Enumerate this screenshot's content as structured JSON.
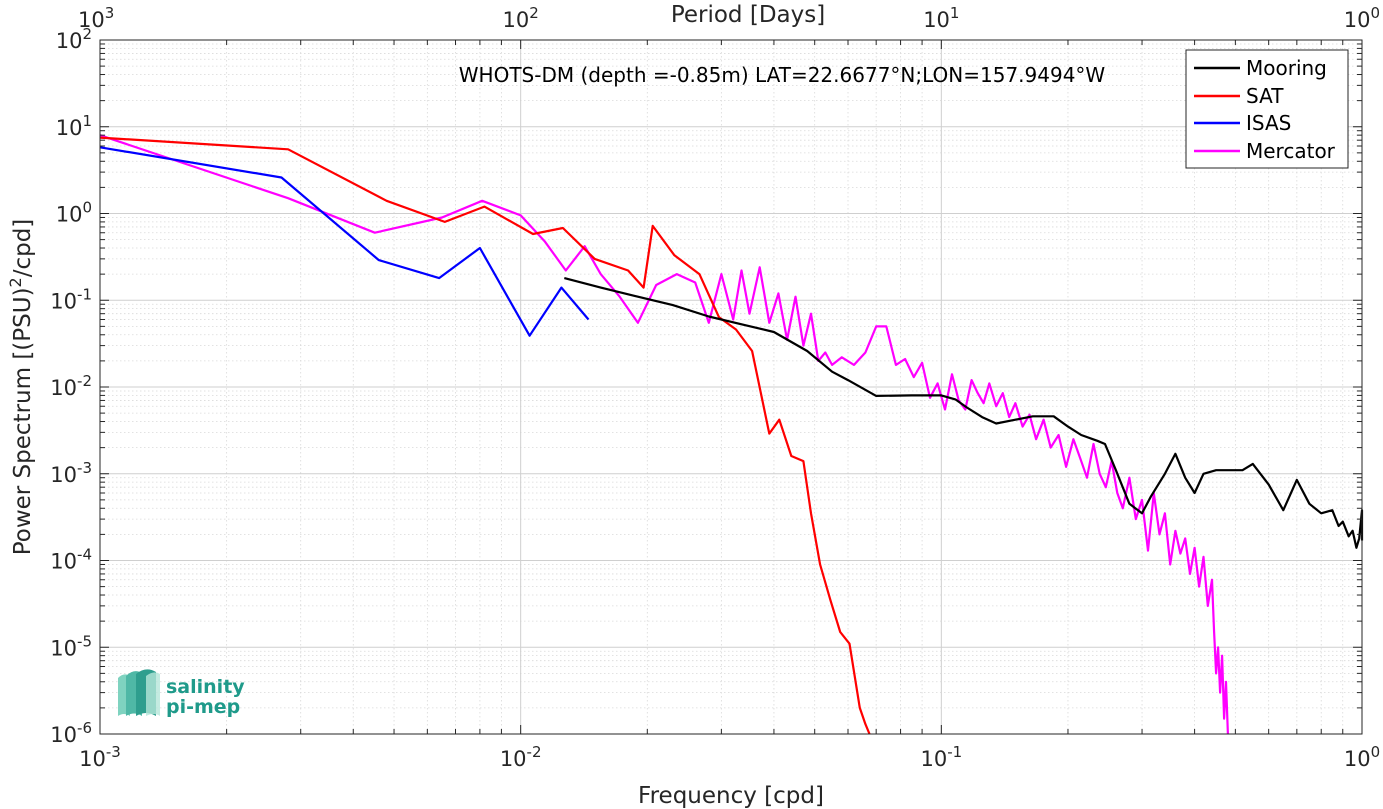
{
  "chart_data": {
    "type": "line",
    "title": "",
    "annotation": "WHOTS-DM (depth =-0.85m) LAT=22.6677°N;LON=157.9494°W",
    "xlabel": "Frequency [cpd]",
    "ylabel": "Power Spectrum [(PSU)",
    "ylabel_sup": "2",
    "ylabel_tail": "/cpd]",
    "top_xlabel": "Period [Days]",
    "xscale": "log",
    "yscale": "log",
    "xlim": [
      0.001,
      1
    ],
    "ylim": [
      1e-06,
      100
    ],
    "grid": true,
    "legend_position": "top-right",
    "x_ticks": [
      {
        "value": 0.001,
        "base": "10",
        "exp": "-3"
      },
      {
        "value": 0.01,
        "base": "10",
        "exp": "-2"
      },
      {
        "value": 0.1,
        "base": "10",
        "exp": "-1"
      },
      {
        "value": 1,
        "base": "10",
        "exp": "0"
      }
    ],
    "y_ticks": [
      {
        "value": 1e-06,
        "base": "10",
        "exp": "-6"
      },
      {
        "value": 1e-05,
        "base": "10",
        "exp": "-5"
      },
      {
        "value": 0.0001,
        "base": "10",
        "exp": "-4"
      },
      {
        "value": 0.001,
        "base": "10",
        "exp": "-3"
      },
      {
        "value": 0.01,
        "base": "10",
        "exp": "-2"
      },
      {
        "value": 0.1,
        "base": "10",
        "exp": "-1"
      },
      {
        "value": 1,
        "base": "10",
        "exp": "0"
      },
      {
        "value": 10,
        "base": "10",
        "exp": "1"
      },
      {
        "value": 100,
        "base": "10",
        "exp": "2"
      }
    ],
    "top_ticks": [
      {
        "value": 0.001,
        "base": "10",
        "exp": "3"
      },
      {
        "value": 0.01,
        "base": "10",
        "exp": "2"
      },
      {
        "value": 0.1,
        "base": "10",
        "exp": "1"
      },
      {
        "value": 1,
        "base": "10",
        "exp": "0"
      }
    ],
    "series": [
      {
        "name": "Mooring",
        "color": "#000000",
        "points": [
          [
            0.0127,
            0.18
          ],
          [
            0.0155,
            0.14
          ],
          [
            0.019,
            0.11
          ],
          [
            0.023,
            0.088
          ],
          [
            0.028,
            0.065
          ],
          [
            0.034,
            0.052
          ],
          [
            0.04,
            0.043
          ],
          [
            0.048,
            0.026
          ],
          [
            0.055,
            0.015
          ],
          [
            0.06,
            0.012
          ],
          [
            0.07,
            0.0079
          ],
          [
            0.085,
            0.008
          ],
          [
            0.1,
            0.008
          ],
          [
            0.108,
            0.0072
          ],
          [
            0.115,
            0.0058
          ],
          [
            0.125,
            0.0045
          ],
          [
            0.135,
            0.0038
          ],
          [
            0.15,
            0.0042
          ],
          [
            0.165,
            0.0046
          ],
          [
            0.185,
            0.0046
          ],
          [
            0.2,
            0.0035
          ],
          [
            0.215,
            0.0028
          ],
          [
            0.235,
            0.0024
          ],
          [
            0.245,
            0.0022
          ],
          [
            0.26,
            0.0011
          ],
          [
            0.28,
            0.00045
          ],
          [
            0.3,
            0.00035
          ],
          [
            0.315,
            0.00055
          ],
          [
            0.34,
            0.001
          ],
          [
            0.36,
            0.0017
          ],
          [
            0.38,
            0.0009
          ],
          [
            0.4,
            0.0006
          ],
          [
            0.42,
            0.001
          ],
          [
            0.45,
            0.0011
          ],
          [
            0.48,
            0.0011
          ],
          [
            0.52,
            0.0011
          ],
          [
            0.55,
            0.0013
          ],
          [
            0.6,
            0.00075
          ],
          [
            0.65,
            0.00038
          ],
          [
            0.7,
            0.00085
          ],
          [
            0.75,
            0.00045
          ],
          [
            0.8,
            0.00035
          ],
          [
            0.85,
            0.00038
          ],
          [
            0.88,
            0.00025
          ],
          [
            0.9,
            0.00028
          ],
          [
            0.93,
            0.00019
          ],
          [
            0.95,
            0.00022
          ],
          [
            0.97,
            0.00014
          ],
          [
            0.985,
            0.00018
          ],
          [
            1.0,
            0.00038
          ],
          [
            1.0,
            0.00017
          ]
        ]
      },
      {
        "name": "SAT",
        "color": "#ff0000",
        "points": [
          [
            0.001,
            7.5
          ],
          [
            0.0028,
            5.5
          ],
          [
            0.0048,
            1.4
          ],
          [
            0.0066,
            0.8
          ],
          [
            0.0082,
            1.2
          ],
          [
            0.0107,
            0.58
          ],
          [
            0.0126,
            0.68
          ],
          [
            0.015,
            0.3
          ],
          [
            0.018,
            0.22
          ],
          [
            0.0196,
            0.14
          ],
          [
            0.0206,
            0.72
          ],
          [
            0.0232,
            0.33
          ],
          [
            0.0266,
            0.2
          ],
          [
            0.0296,
            0.064
          ],
          [
            0.0325,
            0.046
          ],
          [
            0.0355,
            0.026
          ],
          [
            0.039,
            0.0029
          ],
          [
            0.0412,
            0.0042
          ],
          [
            0.044,
            0.0016
          ],
          [
            0.047,
            0.0014
          ],
          [
            0.049,
            0.00035
          ],
          [
            0.0515,
            9e-05
          ],
          [
            0.0545,
            3.5e-05
          ],
          [
            0.0575,
            1.5e-05
          ],
          [
            0.0605,
            1.1e-05
          ],
          [
            0.064,
            2e-06
          ],
          [
            0.066,
            1.3e-06
          ],
          [
            0.0675,
            1e-06
          ]
        ]
      },
      {
        "name": "ISAS",
        "color": "#0000ff",
        "points": [
          [
            0.001,
            5.8
          ],
          [
            0.0027,
            2.6
          ],
          [
            0.0046,
            0.29
          ],
          [
            0.0064,
            0.18
          ],
          [
            0.008,
            0.4
          ],
          [
            0.0105,
            0.039
          ],
          [
            0.0125,
            0.14
          ],
          [
            0.0145,
            0.06
          ]
        ]
      },
      {
        "name": "Mercator",
        "color": "#ff00ff",
        "points": [
          [
            0.001,
            8.0
          ],
          [
            0.0028,
            1.5
          ],
          [
            0.0045,
            0.6
          ],
          [
            0.0065,
            0.9
          ],
          [
            0.0081,
            1.4
          ],
          [
            0.01,
            0.95
          ],
          [
            0.0114,
            0.48
          ],
          [
            0.0128,
            0.22
          ],
          [
            0.0142,
            0.42
          ],
          [
            0.0155,
            0.2
          ],
          [
            0.0172,
            0.11
          ],
          [
            0.019,
            0.055
          ],
          [
            0.021,
            0.15
          ],
          [
            0.0235,
            0.2
          ],
          [
            0.026,
            0.16
          ],
          [
            0.028,
            0.055
          ],
          [
            0.03,
            0.2
          ],
          [
            0.032,
            0.06
          ],
          [
            0.0335,
            0.22
          ],
          [
            0.035,
            0.07
          ],
          [
            0.037,
            0.24
          ],
          [
            0.039,
            0.055
          ],
          [
            0.041,
            0.12
          ],
          [
            0.043,
            0.035
          ],
          [
            0.045,
            0.11
          ],
          [
            0.047,
            0.03
          ],
          [
            0.049,
            0.07
          ],
          [
            0.051,
            0.02
          ],
          [
            0.053,
            0.025
          ],
          [
            0.055,
            0.018
          ],
          [
            0.058,
            0.022
          ],
          [
            0.062,
            0.018
          ],
          [
            0.066,
            0.025
          ],
          [
            0.07,
            0.05
          ],
          [
            0.074,
            0.05
          ],
          [
            0.078,
            0.018
          ],
          [
            0.082,
            0.021
          ],
          [
            0.086,
            0.013
          ],
          [
            0.09,
            0.019
          ],
          [
            0.094,
            0.0075
          ],
          [
            0.098,
            0.011
          ],
          [
            0.102,
            0.0055
          ],
          [
            0.106,
            0.014
          ],
          [
            0.11,
            0.007
          ],
          [
            0.114,
            0.0055
          ],
          [
            0.118,
            0.012
          ],
          [
            0.122,
            0.0085
          ],
          [
            0.126,
            0.0065
          ],
          [
            0.13,
            0.011
          ],
          [
            0.135,
            0.006
          ],
          [
            0.14,
            0.0085
          ],
          [
            0.145,
            0.0045
          ],
          [
            0.15,
            0.0065
          ],
          [
            0.156,
            0.0035
          ],
          [
            0.162,
            0.0048
          ],
          [
            0.168,
            0.0025
          ],
          [
            0.175,
            0.0042
          ],
          [
            0.182,
            0.002
          ],
          [
            0.19,
            0.0028
          ],
          [
            0.198,
            0.0012
          ],
          [
            0.206,
            0.0025
          ],
          [
            0.214,
            0.0015
          ],
          [
            0.222,
            0.0009
          ],
          [
            0.23,
            0.0022
          ],
          [
            0.238,
            0.001
          ],
          [
            0.246,
            0.0007
          ],
          [
            0.254,
            0.0014
          ],
          [
            0.262,
            0.0006
          ],
          [
            0.27,
            0.0004
          ],
          [
            0.28,
            0.0009
          ],
          [
            0.29,
            0.0003
          ],
          [
            0.3,
            0.0005
          ],
          [
            0.31,
            0.00013
          ],
          [
            0.32,
            0.0006
          ],
          [
            0.33,
            0.0002
          ],
          [
            0.34,
            0.00035
          ],
          [
            0.35,
            9e-05
          ],
          [
            0.36,
            0.00022
          ],
          [
            0.37,
            0.00012
          ],
          [
            0.38,
            0.00018
          ],
          [
            0.39,
            7e-05
          ],
          [
            0.4,
            0.00014
          ],
          [
            0.41,
            5e-05
          ],
          [
            0.42,
            0.00011
          ],
          [
            0.43,
            3e-05
          ],
          [
            0.44,
            6e-05
          ],
          [
            0.445,
            1.5e-05
          ],
          [
            0.45,
            5e-06
          ],
          [
            0.455,
            1e-05
          ],
          [
            0.46,
            3e-06
          ],
          [
            0.465,
            8e-06
          ],
          [
            0.47,
            1.5e-06
          ],
          [
            0.475,
            4e-06
          ],
          [
            0.48,
            1e-06
          ]
        ]
      }
    ]
  },
  "legend_entries": [
    "Mooring",
    "SAT",
    "ISAS",
    "Mercator"
  ],
  "logo": {
    "line1": "salinity",
    "line2": "pi-mep"
  }
}
